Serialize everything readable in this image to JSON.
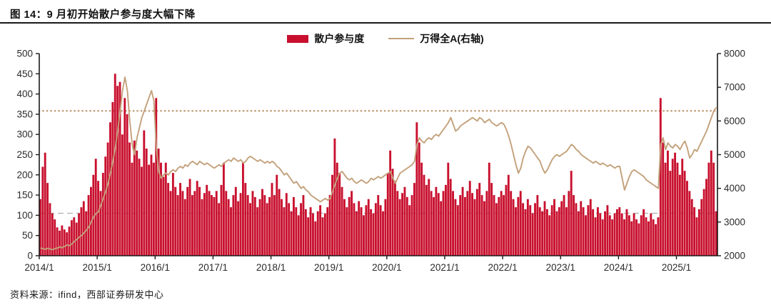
{
  "page": {
    "title": "图 14：9 月初开始散户参与度大幅下降",
    "source": "资料来源：ifind，西部证券研发中心"
  },
  "chart_data": {
    "type": "bar+line",
    "title": "图 14：9 月初开始散户参与度大幅下降",
    "legend_position": "top-center",
    "grid": false,
    "points_per_year": 24,
    "x_ticks": [
      "2014/1",
      "2015/1",
      "2016/1",
      "2017/1",
      "2018/1",
      "2019/1",
      "2020/1",
      "2021/1",
      "2022/1",
      "2023/1",
      "2024/1",
      "2025/1"
    ],
    "left_axis": {
      "min": 0,
      "max": 500,
      "ticks": [
        0,
        50,
        100,
        150,
        200,
        250,
        300,
        350,
        400,
        450,
        500
      ]
    },
    "right_axis": {
      "min": 2000,
      "max": 8000,
      "ticks": [
        2000,
        3000,
        4000,
        5000,
        6000,
        7000,
        8000
      ]
    },
    "reference_lines": [
      {
        "axis": "right",
        "value": 6300,
        "style": "dotted",
        "color": "#C3A17B"
      },
      {
        "axis": "left",
        "value": 105,
        "style": "dashed",
        "color": "#B3B3B3"
      }
    ],
    "series": [
      {
        "name": "散户参与度",
        "type": "bar",
        "axis": "left",
        "color": "#C8102E",
        "values": [
          140,
          220,
          255,
          180,
          130,
          105,
          90,
          70,
          62,
          75,
          65,
          58,
          72,
          88,
          95,
          82,
          105,
          120,
          135,
          110,
          150,
          170,
          200,
          240,
          185,
          160,
          205,
          245,
          280,
          330,
          380,
          450,
          420,
          430,
          300,
          390,
          350,
          280,
          230,
          285,
          260,
          240,
          220,
          310,
          265,
          225,
          250,
          230,
          390,
          265,
          230,
          195,
          230,
          180,
          160,
          205,
          170,
          150,
          180,
          160,
          140,
          170,
          190,
          150,
          160,
          185,
          170,
          140,
          155,
          175,
          160,
          150,
          145,
          160,
          130,
          175,
          230,
          160,
          140,
          120,
          150,
          170,
          135,
          155,
          230,
          180,
          150,
          130,
          160,
          145,
          120,
          140,
          165,
          150,
          130,
          145,
          180,
          150,
          200,
          165,
          140,
          120,
          155,
          130,
          110,
          145,
          120,
          100,
          130,
          150,
          115,
          95,
          120,
          105,
          85,
          110,
          125,
          95,
          105,
          120,
          150,
          200,
          290,
          230,
          205,
          170,
          140,
          120,
          145,
          160,
          130,
          110,
          135,
          120,
          100,
          125,
          140,
          115,
          105,
          130,
          150,
          125,
          110,
          140,
          205,
          260,
          215,
          185,
          160,
          140,
          155,
          170,
          145,
          125,
          150,
          180,
          330,
          280,
          230,
          200,
          175,
          190,
          160,
          145,
          170,
          155,
          135,
          160,
          175,
          230,
          190,
          160,
          140,
          125,
          150,
          170,
          145,
          160,
          185,
          155,
          140,
          165,
          180,
          150,
          135,
          160,
          230,
          180,
          150,
          130,
          145,
          160,
          150,
          175,
          200,
          160,
          140,
          120,
          145,
          160,
          130,
          115,
          140,
          125,
          105,
          130,
          150,
          120,
          110,
          135,
          115,
          100,
          125,
          140,
          110,
          120,
          135,
          150,
          120,
          160,
          210,
          150,
          130,
          110,
          135,
          120,
          100,
          125,
          140,
          115,
          95,
          120,
          105,
          90,
          110,
          125,
          100,
          90,
          105,
          115,
          120,
          105,
          90,
          115,
          100,
          85,
          105,
          90,
          80,
          100,
          115,
          95,
          85,
          105,
          90,
          78,
          95,
          390,
          280,
          230,
          260,
          210,
          240,
          255,
          230,
          200,
          240,
          210,
          185,
          160,
          140,
          120,
          95,
          115,
          140,
          165,
          190,
          230,
          260,
          230,
          110
        ]
      },
      {
        "name": "万得全A(右轴)",
        "type": "line",
        "axis": "right",
        "color": "#C3A17B",
        "values": [
          2230,
          2210,
          2190,
          2220,
          2200,
          2180,
          2210,
          2230,
          2260,
          2240,
          2280,
          2320,
          2300,
          2350,
          2420,
          2480,
          2550,
          2600,
          2680,
          2750,
          2850,
          3000,
          3150,
          3250,
          3300,
          3500,
          3700,
          3900,
          4150,
          4450,
          4800,
          5200,
          5700,
          6300,
          6900,
          7300,
          6900,
          6000,
          5300,
          5000,
          5500,
          5800,
          6100,
          6300,
          6500,
          6700,
          6900,
          6600,
          5200,
          4500,
          4300,
          4400,
          4450,
          4400,
          4500,
          4550,
          4500,
          4600,
          4650,
          4600,
          4700,
          4650,
          4750,
          4800,
          4750,
          4700,
          4800,
          4750,
          4700,
          4750,
          4700,
          4650,
          4600,
          4650,
          4700,
          4650,
          4750,
          4800,
          4850,
          4800,
          4900,
          4850,
          4800,
          4850,
          4750,
          4800,
          4900,
          4950,
          4900,
          4850,
          4800,
          4850,
          4800,
          4750,
          4800,
          4750,
          4800,
          4750,
          4650,
          4600,
          4500,
          4400,
          4450,
          4350,
          4250,
          4150,
          4200,
          4100,
          4000,
          4050,
          3950,
          3900,
          3800,
          3750,
          3700,
          3650,
          3600,
          3650,
          3700,
          3650,
          3700,
          3900,
          4100,
          4300,
          4450,
          4500,
          4400,
          4300,
          4250,
          4300,
          4200,
          4150,
          4200,
          4250,
          4200,
          4150,
          4200,
          4300,
          4250,
          4300,
          4350,
          4300,
          4350,
          4400,
          4450,
          4500,
          4300,
          4150,
          4300,
          4450,
          4500,
          4550,
          4600,
          4650,
          4700,
          4800,
          5300,
          5500,
          5400,
          5350,
          5450,
          5500,
          5450,
          5550,
          5600,
          5550,
          5650,
          5750,
          5850,
          5950,
          6100,
          5900,
          5700,
          5750,
          5850,
          5900,
          5950,
          6000,
          6050,
          6100,
          6050,
          6000,
          6100,
          6050,
          5950,
          6000,
          6050,
          5950,
          5900,
          5850,
          5900,
          5950,
          5900,
          5750,
          5550,
          5300,
          5000,
          4700,
          4450,
          4600,
          4900,
          5100,
          5250,
          5200,
          5100,
          5000,
          4900,
          4800,
          4600,
          4450,
          4550,
          4700,
          4850,
          4950,
          5000,
          4950,
          5000,
          5050,
          5100,
          5200,
          5300,
          5250,
          5150,
          5100,
          5000,
          4950,
          4900,
          4850,
          4800,
          4750,
          4800,
          4750,
          4700,
          4750,
          4700,
          4650,
          4700,
          4650,
          4600,
          4650,
          4650,
          4300,
          3950,
          4150,
          4350,
          4500,
          4550,
          4500,
          4450,
          4400,
          4350,
          4250,
          4200,
          4150,
          4100,
          4050,
          4000,
          5300,
          5500,
          5150,
          5350,
          5250,
          5200,
          5300,
          5250,
          5150,
          5300,
          5400,
          5200,
          4900,
          5000,
          5150,
          5100,
          5250,
          5400,
          5550,
          5700,
          5900,
          6100,
          6300,
          6400
        ]
      }
    ]
  }
}
